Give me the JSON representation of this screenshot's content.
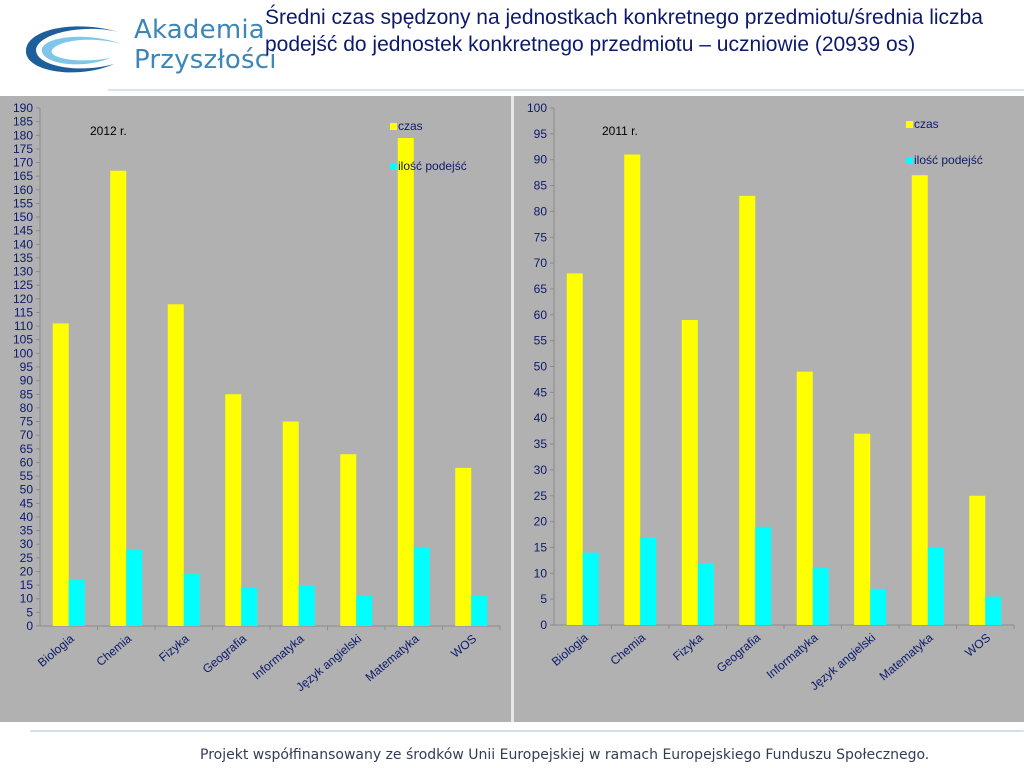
{
  "logo": {
    "line1": "Akademia",
    "line2": "Przyszłości"
  },
  "title": "Średni czas spędzony na jednostkach konkretnego przedmiotu/średnia liczba podejść do jednostek konkretnego przedmiotu – uczniowie (20939 os)",
  "footer": "Projekt współfinansowany ze środków Unii Europejskiej w ramach Europejskiego Funduszu Społecznego.",
  "colors": {
    "czas": "#ffff00",
    "ilosc_podejsc": "#00ffff",
    "panel_bg": "#b1b1b1"
  },
  "chart_data": [
    {
      "type": "bar",
      "title": "2012 r.",
      "categories": [
        "Biologia",
        "Chemia",
        "Fizyka",
        "Geografia",
        "Informatyka",
        "Język angielski",
        "Matematyka",
        "WOS"
      ],
      "series": [
        {
          "name": "czas",
          "values": [
            111,
            167,
            118,
            85,
            75,
            63,
            179,
            58
          ]
        },
        {
          "name": "ilość podejść",
          "values": [
            17,
            28,
            19,
            14,
            15,
            11,
            29,
            11
          ]
        }
      ],
      "ylim": [
        0,
        190
      ],
      "ytick_step": 5,
      "grid": false,
      "legend_position": "top-right"
    },
    {
      "type": "bar",
      "title": "2011 r.",
      "categories": [
        "Biologia",
        "Chemia",
        "Fizyka",
        "Geografia",
        "Informatyka",
        "Język angielski",
        "Matematyka",
        "WOS"
      ],
      "series": [
        {
          "name": "czas",
          "values": [
            68,
            91,
            59,
            83,
            49,
            37,
            87,
            25
          ]
        },
        {
          "name": "ilość podejść",
          "values": [
            14,
            17,
            12,
            19,
            11,
            7,
            15,
            5.5
          ]
        }
      ],
      "ylim": [
        0,
        100
      ],
      "ytick_step": 5,
      "grid": false,
      "legend_position": "top-right"
    }
  ]
}
